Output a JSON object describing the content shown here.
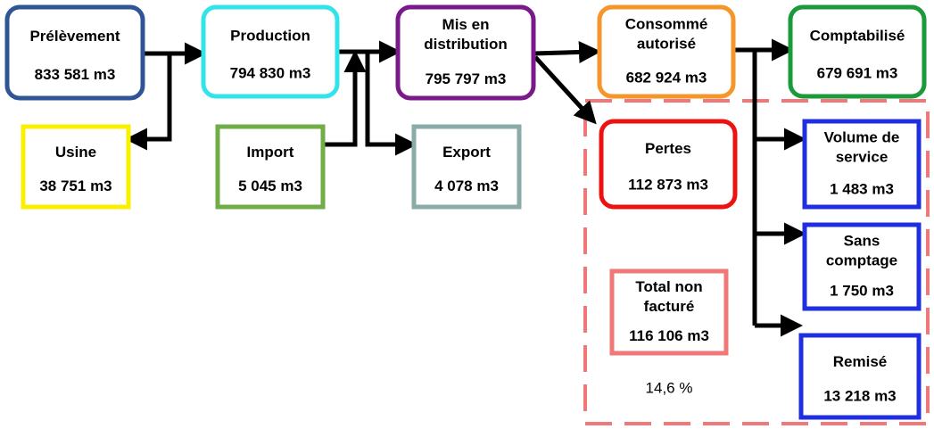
{
  "nodes": [
    {
      "label": [
        "Prélèvement"
      ],
      "value": "833 581 m3"
    },
    {
      "label": [
        "Production"
      ],
      "value": "794 830 m3"
    },
    {
      "label": [
        "Mis en",
        "distribution"
      ],
      "value": "795 797 m3"
    },
    {
      "label": [
        "Consommé",
        "autorisé"
      ],
      "value": "682 924 m3"
    },
    {
      "label": [
        "Comptabilisé"
      ],
      "value": "679 691 m3"
    },
    {
      "label": [
        "Usine"
      ],
      "value": "38 751 m3"
    },
    {
      "label": [
        "Import"
      ],
      "value": "5 045 m3"
    },
    {
      "label": [
        "Export"
      ],
      "value": "4 078 m3"
    },
    {
      "label": [
        "Pertes"
      ],
      "value": "112 873 m3"
    },
    {
      "label": [
        "Volume de",
        "service"
      ],
      "value": "1 483 m3"
    },
    {
      "label": [
        "Sans",
        "comptage"
      ],
      "value": "1 750 m3"
    },
    {
      "label": [
        "Remisé"
      ],
      "value": "13 218 m3"
    },
    {
      "label": [
        "Total non",
        "facturé"
      ],
      "value": "116 106 m3"
    }
  ],
  "percentage": "14,6 %"
}
